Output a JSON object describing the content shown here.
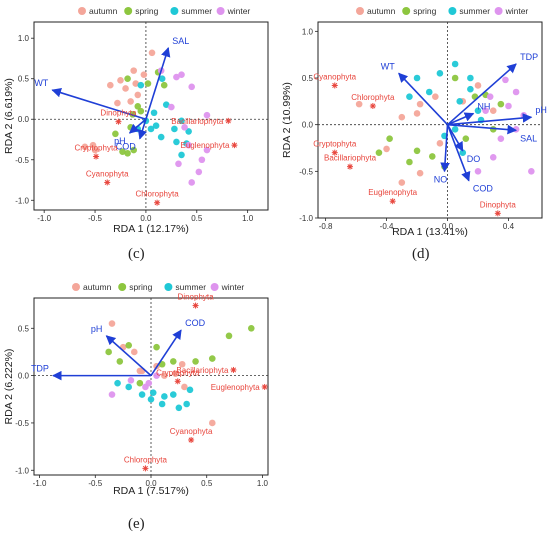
{
  "colors": {
    "autumn": "#f4a69a",
    "spring": "#8dc63f",
    "summer": "#1fc8d6",
    "winter": "#de94ee",
    "arrow": "#1f3fd6",
    "taxa": "#e8453c"
  },
  "captions": [
    "(c)",
    "(d)",
    "(e)"
  ],
  "chart_data": [
    {
      "type": "scatter",
      "panel": "c",
      "xlabel": "RDA 1 (12.17%)",
      "ylabel": "RDA 2 (6.619%)",
      "xlim": [
        -1.1,
        1.2
      ],
      "ylim": [
        -1.12,
        1.2
      ],
      "xticks": [
        "-1.0",
        "-0.5",
        "0.0",
        "0.5",
        "1.0"
      ],
      "yticks": [
        "-1.0",
        "-0.5",
        "0.0",
        "0.5",
        "1.0"
      ],
      "xtick_values": [
        -1.0,
        -0.5,
        0.0,
        0.5,
        1.0
      ],
      "ytick_values": [
        -1.0,
        -0.5,
        0.0,
        0.5,
        1.0
      ],
      "legend": [
        "autumn",
        "spring",
        "summer",
        "winter"
      ],
      "legend_position": "top",
      "arrows": [
        {
          "label": "SAL",
          "x": 0.22,
          "y": 0.88
        },
        {
          "label": "WT",
          "x": -0.92,
          "y": 0.36
        },
        {
          "label": "pH",
          "x": -0.16,
          "y": -0.17
        },
        {
          "label": "COD",
          "x": -0.06,
          "y": -0.24
        }
      ],
      "taxa": [
        {
          "label": "Dinophyta",
          "x": -0.27,
          "y": -0.03
        },
        {
          "label": "Bacillariophyta",
          "x": 0.81,
          "y": -0.02
        },
        {
          "label": "Euglenophyta",
          "x": 0.87,
          "y": -0.32
        },
        {
          "label": "Cryptophyta",
          "x": -0.49,
          "y": -0.46
        },
        {
          "label": "Cyanophyta",
          "x": -0.38,
          "y": -0.78
        },
        {
          "label": "Chlorophyta",
          "x": 0.11,
          "y": -1.03
        }
      ],
      "samples": {
        "autumn": [
          [
            -0.52,
            -0.32
          ],
          [
            -0.5,
            -0.38
          ],
          [
            -0.6,
            -0.34
          ],
          [
            -0.35,
            0.42
          ],
          [
            -0.25,
            0.48
          ],
          [
            -0.12,
            0.6
          ],
          [
            -0.2,
            0.38
          ],
          [
            -0.1,
            0.44
          ],
          [
            -0.02,
            0.55
          ],
          [
            -0.08,
            0.3
          ],
          [
            0.06,
            0.82
          ],
          [
            -0.28,
            0.2
          ],
          [
            -0.15,
            0.22
          ]
        ],
        "spring": [
          [
            -0.3,
            -0.18
          ],
          [
            -0.15,
            -0.1
          ],
          [
            -0.12,
            -0.38
          ],
          [
            -0.08,
            0.16
          ],
          [
            -0.05,
            0.1
          ],
          [
            0.02,
            0.44
          ],
          [
            -0.23,
            -0.4
          ],
          [
            -0.18,
            -0.42
          ],
          [
            0.18,
            0.42
          ],
          [
            -0.13,
            0.06
          ],
          [
            -0.18,
            0.5
          ],
          [
            0.12,
            0.58
          ]
        ],
        "summer": [
          [
            -0.08,
            -0.12
          ],
          [
            0.0,
            -0.02
          ],
          [
            0.05,
            -0.12
          ],
          [
            0.1,
            -0.08
          ],
          [
            0.16,
            0.5
          ],
          [
            0.2,
            0.18
          ],
          [
            0.28,
            -0.12
          ],
          [
            0.3,
            -0.28
          ],
          [
            0.35,
            -0.02
          ],
          [
            0.4,
            -0.3
          ],
          [
            0.42,
            -0.15
          ],
          [
            -0.05,
            0.42
          ],
          [
            0.08,
            0.08
          ],
          [
            0.15,
            -0.22
          ],
          [
            0.35,
            -0.44
          ]
        ],
        "winter": [
          [
            0.25,
            0.15
          ],
          [
            0.3,
            0.52
          ],
          [
            0.32,
            -0.55
          ],
          [
            0.45,
            -0.78
          ],
          [
            0.52,
            -0.65
          ],
          [
            0.55,
            -0.5
          ],
          [
            0.6,
            -0.38
          ],
          [
            0.6,
            0.05
          ],
          [
            0.45,
            0.4
          ],
          [
            0.38,
            -0.1
          ],
          [
            0.15,
            0.6
          ],
          [
            0.35,
            0.55
          ],
          [
            0.42,
            -0.32
          ]
        ]
      }
    },
    {
      "type": "scatter",
      "panel": "d",
      "xlabel": "RDA 1 (13.41%)",
      "ylabel": "RDA 2 (10.99%)",
      "xlim": [
        -0.85,
        0.62
      ],
      "ylim": [
        -1.0,
        1.1
      ],
      "xticks": [
        "-0.8",
        "-0.4",
        "0.0",
        "0.4"
      ],
      "yticks": [
        "-1.0",
        "-0.5",
        "0.0",
        "0.5",
        "1.0"
      ],
      "xtick_values": [
        -0.8,
        -0.4,
        0.0,
        0.4
      ],
      "ytick_values": [
        -1.0,
        -0.5,
        0.0,
        0.5,
        1.0
      ],
      "legend": [
        "autumn",
        "spring",
        "summer",
        "winter"
      ],
      "legend_position": "top",
      "arrows": [
        {
          "label": "TDP",
          "x": 0.45,
          "y": 0.65
        },
        {
          "label": "WT",
          "x": -0.32,
          "y": 0.55
        },
        {
          "label": "NH",
          "x": 0.17,
          "y": 0.12
        },
        {
          "label": "pH",
          "x": 0.55,
          "y": 0.08
        },
        {
          "label": "SAL",
          "x": 0.45,
          "y": -0.06
        },
        {
          "label": "DO",
          "x": 0.1,
          "y": -0.28
        },
        {
          "label": "NO",
          "x": -0.02,
          "y": -0.5
        },
        {
          "label": "COD",
          "x": 0.14,
          "y": -0.6
        }
      ],
      "taxa": [
        {
          "label": "Cyanophyta",
          "x": -0.74,
          "y": 0.42
        },
        {
          "label": "Chlorophyta",
          "x": -0.49,
          "y": 0.2
        },
        {
          "label": "Cryptophyta",
          "x": -0.74,
          "y": -0.3
        },
        {
          "label": "Bacillariophyta",
          "x": -0.64,
          "y": -0.45
        },
        {
          "label": "Euglenophyta",
          "x": -0.36,
          "y": -0.82
        },
        {
          "label": "Dinophyta",
          "x": 0.33,
          "y": -0.95
        }
      ],
      "samples": {
        "autumn": [
          [
            -0.58,
            0.22
          ],
          [
            -0.3,
            0.08
          ],
          [
            -0.18,
            0.22
          ],
          [
            -0.08,
            0.3
          ],
          [
            0.2,
            0.42
          ],
          [
            -0.4,
            -0.26
          ],
          [
            -0.18,
            -0.52
          ],
          [
            -0.3,
            -0.62
          ],
          [
            -0.2,
            0.12
          ],
          [
            0.1,
            0.25
          ],
          [
            0.3,
            0.15
          ],
          [
            -0.05,
            -0.2
          ]
        ],
        "spring": [
          [
            -0.45,
            -0.3
          ],
          [
            -0.38,
            -0.15
          ],
          [
            -0.2,
            -0.28
          ],
          [
            -0.1,
            -0.34
          ],
          [
            0.05,
            0.5
          ],
          [
            0.18,
            0.3
          ],
          [
            0.3,
            -0.05
          ],
          [
            0.35,
            0.22
          ],
          [
            -0.02,
            -0.45
          ],
          [
            0.25,
            0.32
          ],
          [
            -0.25,
            -0.4
          ],
          [
            0.12,
            -0.15
          ]
        ],
        "summer": [
          [
            -0.2,
            0.5
          ],
          [
            -0.12,
            0.35
          ],
          [
            0.05,
            0.65
          ],
          [
            -0.25,
            0.3
          ],
          [
            -0.05,
            0.55
          ],
          [
            0.15,
            0.38
          ],
          [
            0.2,
            0.15
          ],
          [
            -0.02,
            -0.12
          ],
          [
            0.1,
            -0.3
          ],
          [
            0.05,
            -0.05
          ],
          [
            0.22,
            0.05
          ],
          [
            0.08,
            0.25
          ],
          [
            0.15,
            0.5
          ]
        ],
        "winter": [
          [
            0.28,
            0.3
          ],
          [
            0.25,
            0.15
          ],
          [
            0.4,
            0.2
          ],
          [
            0.5,
            0.1
          ],
          [
            0.55,
            -0.5
          ],
          [
            0.45,
            0.35
          ],
          [
            0.3,
            -0.35
          ],
          [
            0.35,
            -0.15
          ],
          [
            0.38,
            0.48
          ],
          [
            0.45,
            -0.05
          ],
          [
            0.2,
            -0.5
          ]
        ]
      }
    },
    {
      "type": "scatter",
      "panel": "e",
      "xlabel": "RDA 1 (7.517%)",
      "ylabel": "RDA 2 (6.222%)",
      "xlim": [
        -1.05,
        1.05
      ],
      "ylim": [
        -1.05,
        0.82
      ],
      "xticks": [
        "-1.0",
        "-0.5",
        "0.0",
        "0.5",
        "1.0"
      ],
      "yticks": [
        "-1.0",
        "-0.5",
        "0.0",
        "0.5"
      ],
      "xtick_values": [
        -1.0,
        -0.5,
        0.0,
        0.5,
        1.0
      ],
      "ytick_values": [
        -1.0,
        -0.5,
        0.0,
        0.5
      ],
      "legend": [
        "autumn",
        "spring",
        "summer",
        "winter"
      ],
      "legend_position": "top",
      "arrows": [
        {
          "label": "pH",
          "x": -0.4,
          "y": 0.42
        },
        {
          "label": "COD",
          "x": 0.27,
          "y": 0.48
        },
        {
          "label": "TDP",
          "x": -0.88,
          "y": 0.0
        }
      ],
      "taxa": [
        {
          "label": "Dinophyta",
          "x": 0.4,
          "y": 0.74
        },
        {
          "label": "Bacillariophyta",
          "x": 0.74,
          "y": 0.06
        },
        {
          "label": "Cryptophyta",
          "x": 0.24,
          "y": -0.06
        },
        {
          "label": "Euglenophyta",
          "x": 1.02,
          "y": -0.12
        },
        {
          "label": "Cyanophyta",
          "x": 0.36,
          "y": -0.68
        },
        {
          "label": "Chlorophyta",
          "x": -0.05,
          "y": -0.98
        }
      ],
      "samples": {
        "autumn": [
          [
            -0.35,
            0.55
          ],
          [
            -0.25,
            0.3
          ],
          [
            -0.15,
            0.25
          ],
          [
            -0.1,
            0.05
          ],
          [
            0.05,
            0.1
          ],
          [
            0.22,
            0.02
          ],
          [
            0.28,
            0.12
          ],
          [
            0.3,
            -0.12
          ],
          [
            0.55,
            -0.5
          ],
          [
            -0.08,
            0.05
          ],
          [
            0.12,
            0.0
          ]
        ],
        "spring": [
          [
            -0.38,
            0.25
          ],
          [
            -0.28,
            0.15
          ],
          [
            -0.2,
            0.32
          ],
          [
            0.05,
            0.3
          ],
          [
            0.2,
            0.15
          ],
          [
            0.4,
            0.15
          ],
          [
            0.55,
            0.18
          ],
          [
            0.7,
            0.42
          ],
          [
            0.9,
            0.5
          ],
          [
            0.1,
            0.12
          ],
          [
            -0.1,
            -0.08
          ]
        ],
        "summer": [
          [
            -0.3,
            -0.08
          ],
          [
            -0.2,
            -0.12
          ],
          [
            -0.08,
            -0.2
          ],
          [
            0.0,
            -0.25
          ],
          [
            0.1,
            -0.3
          ],
          [
            0.2,
            -0.2
          ],
          [
            0.25,
            -0.34
          ],
          [
            0.35,
            -0.15
          ],
          [
            0.32,
            -0.3
          ],
          [
            0.02,
            -0.18
          ],
          [
            0.12,
            -0.22
          ]
        ],
        "winter": [
          [
            -0.35,
            -0.2
          ],
          [
            -0.05,
            -0.12
          ],
          [
            -0.02,
            -0.08
          ],
          [
            -0.18,
            -0.05
          ],
          [
            0.05,
            0.0
          ]
        ]
      }
    }
  ]
}
